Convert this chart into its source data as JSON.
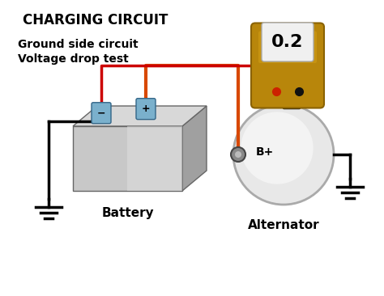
{
  "title": "CHARGING CIRCUIT",
  "subtitle_line1": "Ground side circuit",
  "subtitle_line2": "Voltage drop test",
  "meter_value": "0.2",
  "label_battery": "Battery",
  "label_alternator": "Alternator",
  "label_bplus": "B+",
  "bg_color": "#ffffff",
  "meter_body_color": "#b8860b",
  "meter_body_shadow": "#8a6200",
  "meter_screen_color": "#f0f0f0",
  "wire_orange": "#d84800",
  "wire_black": "#111111",
  "wire_red": "#cc0000",
  "battery_front_light": "#c8c8c8",
  "battery_front_dark": "#909090",
  "battery_top": "#d8d8d8",
  "battery_right": "#a0a0a0",
  "terminal_color": "#7ab0cc",
  "terminal_edge": "#336688",
  "alternator_outer": "#e8e8e8",
  "alternator_inner": "#f8f8f8",
  "ground_color": "#111111"
}
